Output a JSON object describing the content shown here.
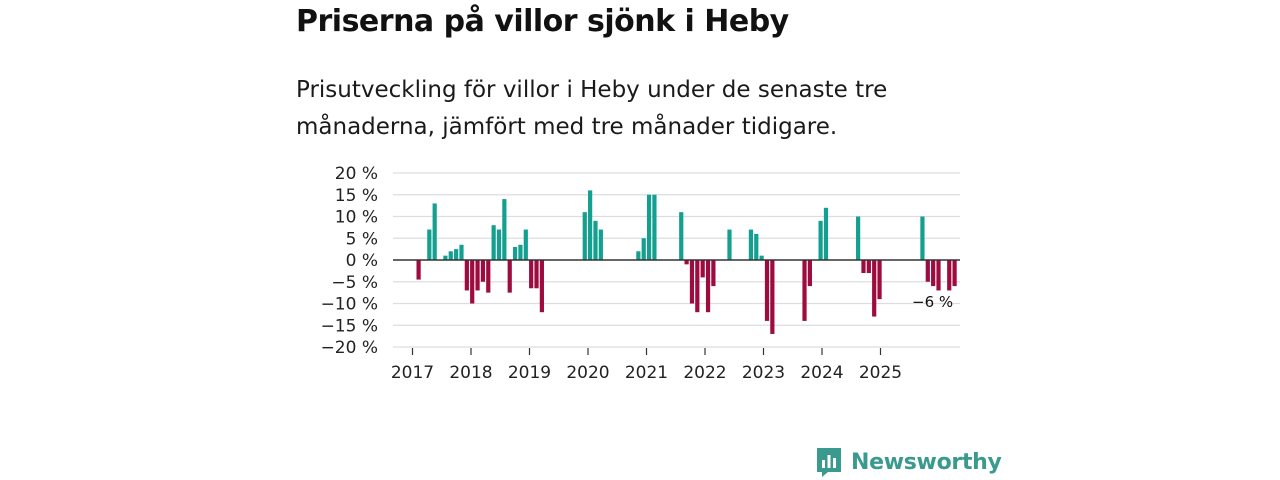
{
  "title": "Priserna på villor sjönk i Heby",
  "subtitle": "Prisutveckling för villor i Heby under de senaste tre månaderna, jämfört med tre månader tidigare.",
  "brand": "Newsworthy",
  "colors": {
    "positive": "#13a090",
    "negative": "#9e0b3e",
    "grid": "#dddddd",
    "zero": "#333333",
    "brand": "#3a9a8e"
  },
  "icons": {
    "logo": "newsworthy-bar-chart-icon"
  },
  "chart_data": {
    "type": "bar",
    "title": "Priserna på villor sjönk i Heby",
    "ylim": [
      -20,
      20
    ],
    "ytick_values": [
      20,
      15,
      10,
      5,
      0,
      -5,
      -10,
      -15,
      -20
    ],
    "ytick_labels": [
      "20 %",
      "15 %",
      "10 %",
      "5 %",
      "0 %",
      "−5 %",
      "−10 %",
      "−15 %",
      "−20 %"
    ],
    "xtick_labels": [
      "2017",
      "2018",
      "2019",
      "2020",
      "2021",
      "2022",
      "2023",
      "2024",
      "2025"
    ],
    "x_start_year": 2017,
    "x_end_year": 2025.92,
    "annotation": {
      "text": "−6 %",
      "value": -6
    },
    "values": [
      -4.5,
      null,
      7,
      13,
      null,
      1,
      2,
      2.5,
      3.5,
      -7,
      -10,
      -7,
      -5,
      -7.5,
      8,
      7,
      14,
      -7.5,
      3,
      3.5,
      7,
      -6.5,
      -6.5,
      -12,
      null,
      null,
      null,
      null,
      null,
      null,
      null,
      11,
      16,
      9,
      7,
      null,
      null,
      null,
      null,
      null,
      null,
      2,
      5,
      15,
      15,
      null,
      null,
      null,
      null,
      11,
      -1,
      -10,
      -12,
      -4,
      -12,
      -6,
      null,
      null,
      7,
      null,
      null,
      null,
      7,
      6,
      1,
      -14,
      -17,
      null,
      null,
      null,
      null,
      null,
      -14,
      -6,
      null,
      9,
      12,
      null,
      null,
      null,
      null,
      null,
      10,
      -3,
      -3,
      -13,
      -9,
      null,
      null,
      null,
      null,
      null,
      null,
      null,
      10,
      -5,
      -6,
      -7,
      null,
      -7,
      -6
    ]
  }
}
